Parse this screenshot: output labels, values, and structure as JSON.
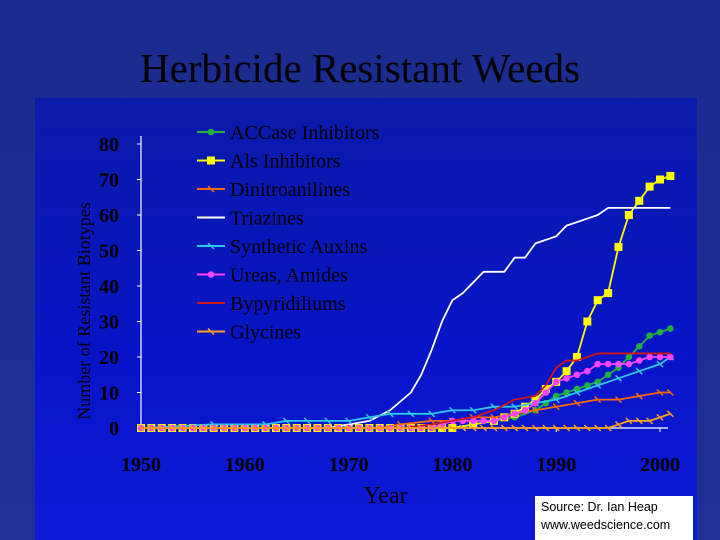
{
  "title": "Herbicide Resistant Weeds",
  "source": {
    "line1": "Source: Dr. Ian Heap",
    "line2": "www.weedscience.com"
  },
  "chart_data": {
    "type": "line",
    "title": "Herbicide Resistant Weeds",
    "xlabel": "Year",
    "ylabel": "Number of Resistant Biotypes",
    "xlim": [
      1950,
      2000
    ],
    "ylim": [
      0,
      80
    ],
    "xticks": [
      1950,
      1960,
      1970,
      1980,
      1990,
      2000
    ],
    "yticks": [
      0,
      10,
      20,
      30,
      40,
      50,
      60,
      70,
      80
    ],
    "legend": "top-left",
    "series": [
      {
        "name": "ACCase Inhibitors",
        "color": "#20b040",
        "marker": "dot",
        "points": [
          [
            1950,
            0
          ],
          [
            1980,
            0
          ],
          [
            1982,
            1
          ],
          [
            1984,
            2
          ],
          [
            1986,
            3
          ],
          [
            1988,
            5
          ],
          [
            1989,
            7
          ],
          [
            1990,
            9
          ],
          [
            1991,
            10
          ],
          [
            1992,
            11
          ],
          [
            1993,
            12
          ],
          [
            1994,
            13
          ],
          [
            1995,
            15
          ],
          [
            1996,
            17
          ],
          [
            1997,
            20
          ],
          [
            1998,
            23
          ],
          [
            1999,
            26
          ],
          [
            2000,
            27
          ],
          [
            2001,
            28
          ]
        ]
      },
      {
        "name": "Als Inhibitors",
        "color": "#ffff00",
        "marker": "square",
        "points": [
          [
            1950,
            0
          ],
          [
            1980,
            0
          ],
          [
            1982,
            1
          ],
          [
            1984,
            2
          ],
          [
            1985,
            3
          ],
          [
            1986,
            4
          ],
          [
            1987,
            6
          ],
          [
            1988,
            8
          ],
          [
            1989,
            11
          ],
          [
            1990,
            13
          ],
          [
            1991,
            16
          ],
          [
            1992,
            20
          ],
          [
            1993,
            30
          ],
          [
            1994,
            36
          ],
          [
            1995,
            38
          ],
          [
            1996,
            51
          ],
          [
            1997,
            60
          ],
          [
            1998,
            64
          ],
          [
            1999,
            68
          ],
          [
            2000,
            70
          ],
          [
            2001,
            71
          ]
        ]
      },
      {
        "name": "Dinitroanilines",
        "color": "#ff6a00",
        "marker": "tick",
        "points": [
          [
            1950,
            0
          ],
          [
            1973,
            0
          ],
          [
            1975,
            1
          ],
          [
            1978,
            2
          ],
          [
            1980,
            2
          ],
          [
            1982,
            3
          ],
          [
            1984,
            3
          ],
          [
            1986,
            4
          ],
          [
            1988,
            5
          ],
          [
            1990,
            6
          ],
          [
            1992,
            7
          ],
          [
            1994,
            8
          ],
          [
            1996,
            8
          ],
          [
            1998,
            9
          ],
          [
            2000,
            10
          ],
          [
            2001,
            10
          ]
        ]
      },
      {
        "name": "Triazines",
        "color": "#ffffff",
        "marker": "none",
        "points": [
          [
            1950,
            0
          ],
          [
            1968,
            0
          ],
          [
            1970,
            1
          ],
          [
            1972,
            2
          ],
          [
            1974,
            5
          ],
          [
            1976,
            10
          ],
          [
            1977,
            15
          ],
          [
            1978,
            22
          ],
          [
            1979,
            30
          ],
          [
            1980,
            36
          ],
          [
            1981,
            38
          ],
          [
            1982,
            41
          ],
          [
            1983,
            44
          ],
          [
            1985,
            44
          ],
          [
            1986,
            48
          ],
          [
            1987,
            48
          ],
          [
            1988,
            52
          ],
          [
            1989,
            53
          ],
          [
            1990,
            54
          ],
          [
            1991,
            57
          ],
          [
            1992,
            58
          ],
          [
            1993,
            59
          ],
          [
            1994,
            60
          ],
          [
            1995,
            62
          ],
          [
            1996,
            62
          ],
          [
            1997,
            62
          ],
          [
            1998,
            62
          ],
          [
            1999,
            62
          ],
          [
            2000,
            62
          ],
          [
            2001,
            62
          ]
        ]
      },
      {
        "name": "Synthetic Auxins",
        "color": "#2ec8e8",
        "marker": "tick",
        "points": [
          [
            1950,
            0
          ],
          [
            1957,
            1
          ],
          [
            1962,
            1
          ],
          [
            1964,
            2
          ],
          [
            1966,
            2
          ],
          [
            1968,
            2
          ],
          [
            1970,
            2
          ],
          [
            1972,
            3
          ],
          [
            1974,
            4
          ],
          [
            1976,
            4
          ],
          [
            1978,
            4
          ],
          [
            1980,
            5
          ],
          [
            1982,
            5
          ],
          [
            1984,
            6
          ],
          [
            1986,
            6
          ],
          [
            1988,
            7
          ],
          [
            1990,
            8
          ],
          [
            1992,
            10
          ],
          [
            1994,
            12
          ],
          [
            1996,
            14
          ],
          [
            1998,
            16
          ],
          [
            2000,
            18
          ],
          [
            2001,
            20
          ]
        ]
      },
      {
        "name": "Ureas, Amides",
        "color": "#ff44ff",
        "marker": "dot",
        "points": [
          [
            1950,
            0
          ],
          [
            1978,
            0
          ],
          [
            1979,
            1
          ],
          [
            1980,
            2
          ],
          [
            1981,
            2
          ],
          [
            1982,
            2
          ],
          [
            1983,
            2
          ],
          [
            1984,
            2
          ],
          [
            1985,
            3
          ],
          [
            1986,
            4
          ],
          [
            1987,
            5
          ],
          [
            1988,
            7
          ],
          [
            1989,
            10
          ],
          [
            1990,
            13
          ],
          [
            1991,
            14
          ],
          [
            1992,
            15
          ],
          [
            1993,
            16
          ],
          [
            1994,
            18
          ],
          [
            1995,
            18
          ],
          [
            1996,
            18
          ],
          [
            1997,
            18
          ],
          [
            1998,
            19
          ],
          [
            1999,
            20
          ],
          [
            2000,
            20
          ],
          [
            2001,
            20
          ]
        ]
      },
      {
        "name": "Bypyridiliums",
        "color": "#d01818",
        "marker": "none",
        "points": [
          [
            1950,
            0
          ],
          [
            1970,
            0
          ],
          [
            1975,
            0
          ],
          [
            1978,
            1
          ],
          [
            1980,
            2
          ],
          [
            1982,
            3
          ],
          [
            1984,
            5
          ],
          [
            1986,
            8
          ],
          [
            1988,
            9
          ],
          [
            1989,
            12
          ],
          [
            1990,
            17
          ],
          [
            1991,
            19
          ],
          [
            1992,
            19
          ],
          [
            1993,
            20
          ],
          [
            1994,
            21
          ],
          [
            1996,
            21
          ],
          [
            1998,
            21
          ],
          [
            2000,
            21
          ],
          [
            2001,
            21
          ]
        ]
      },
      {
        "name": "Glycines",
        "color": "#ffa020",
        "marker": "tick",
        "points": [
          [
            1950,
            0
          ],
          [
            1995,
            0
          ],
          [
            1996,
            1
          ],
          [
            1997,
            2
          ],
          [
            1998,
            2
          ],
          [
            1999,
            2
          ],
          [
            2000,
            3
          ],
          [
            2001,
            4
          ]
        ]
      }
    ]
  }
}
